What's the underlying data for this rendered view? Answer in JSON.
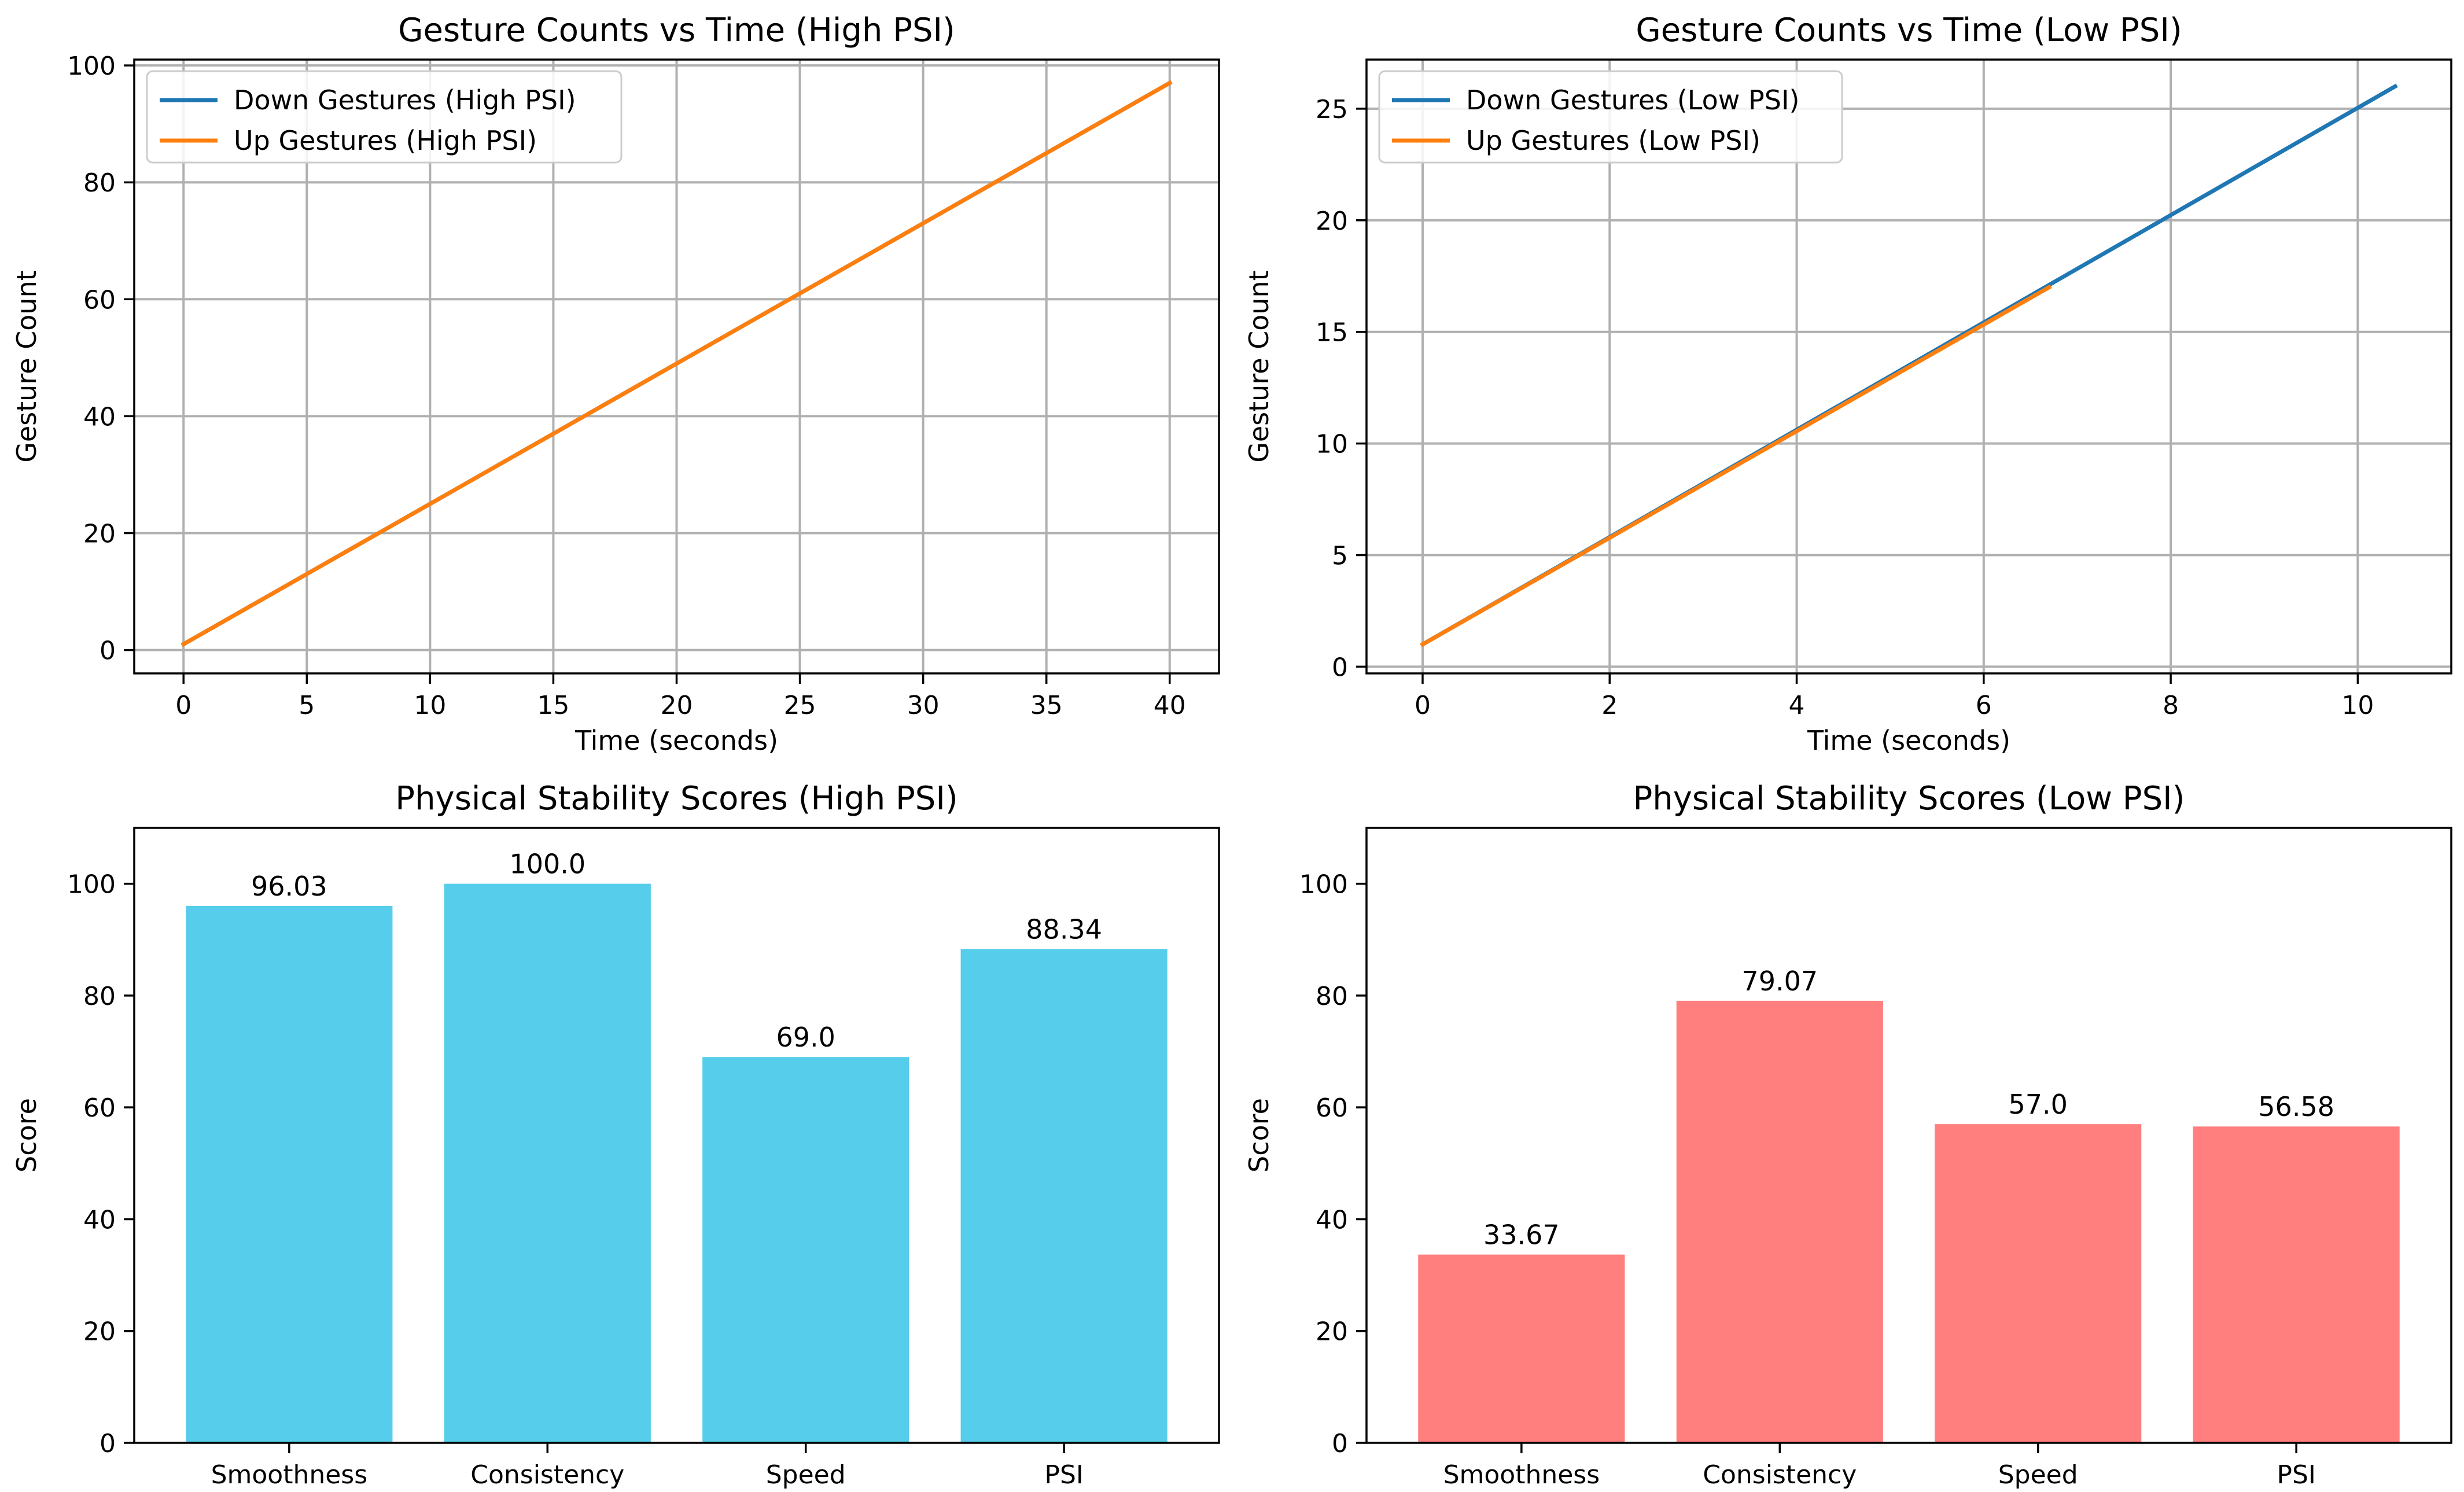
{
  "chart_data": [
    {
      "id": "high-psi-lines",
      "type": "line",
      "title": "Gesture Counts vs Time (High PSI)",
      "xlabel": "Time (seconds)",
      "ylabel": "Gesture Count",
      "xlim": [
        -2,
        42
      ],
      "ylim": [
        -4,
        101
      ],
      "xticks": [
        0,
        5,
        10,
        15,
        20,
        25,
        30,
        35,
        40
      ],
      "yticks": [
        0,
        20,
        40,
        60,
        80,
        100
      ],
      "grid": true,
      "legend_loc": "upper-left",
      "series": [
        {
          "name": "Down Gestures (High PSI)",
          "color": "#1f77b4",
          "x": [
            0,
            40
          ],
          "y": [
            1,
            97
          ]
        },
        {
          "name": "Up Gestures (High PSI)",
          "color": "#ff7f0e",
          "x": [
            0,
            40
          ],
          "y": [
            1,
            97
          ]
        }
      ]
    },
    {
      "id": "low-psi-lines",
      "type": "line",
      "title": "Gesture Counts vs Time (Low PSI)",
      "xlabel": "Time (seconds)",
      "ylabel": "Gesture Count",
      "xlim": [
        -0.6,
        11.0
      ],
      "ylim": [
        -0.3,
        27.2
      ],
      "xticks": [
        0,
        2,
        4,
        6,
        8,
        10
      ],
      "yticks": [
        0,
        5,
        10,
        15,
        20,
        25
      ],
      "grid": true,
      "legend_loc": "upper-left",
      "series": [
        {
          "name": "Down Gestures (Low PSI)",
          "color": "#1f77b4",
          "x": [
            0,
            10.4
          ],
          "y": [
            1,
            26
          ]
        },
        {
          "name": "Up Gestures (Low PSI)",
          "color": "#ff7f0e",
          "x": [
            0,
            6.7
          ],
          "y": [
            1,
            17
          ]
        }
      ]
    },
    {
      "id": "high-psi-bars",
      "type": "bar",
      "title": "Physical Stability Scores (High PSI)",
      "xlabel": "",
      "ylabel": "Score",
      "ylim": [
        0,
        110
      ],
      "yticks": [
        0,
        20,
        40,
        60,
        80,
        100
      ],
      "grid": false,
      "color": "#56cdea",
      "categories": [
        "Smoothness",
        "Consistency",
        "Speed",
        "PSI"
      ],
      "values": [
        96.03,
        100.0,
        69.0,
        88.34
      ],
      "value_labels": [
        "96.03",
        "100.0",
        "69.0",
        "88.34"
      ]
    },
    {
      "id": "low-psi-bars",
      "type": "bar",
      "title": "Physical Stability Scores (Low PSI)",
      "xlabel": "",
      "ylabel": "Score",
      "ylim": [
        0,
        110
      ],
      "yticks": [
        0,
        20,
        40,
        60,
        80,
        100
      ],
      "grid": false,
      "color": "#ff7f7f",
      "categories": [
        "Smoothness",
        "Consistency",
        "Speed",
        "PSI"
      ],
      "values": [
        33.67,
        79.07,
        57.0,
        56.58
      ],
      "value_labels": [
        "33.67",
        "79.07",
        "57.0",
        "56.58"
      ]
    }
  ]
}
